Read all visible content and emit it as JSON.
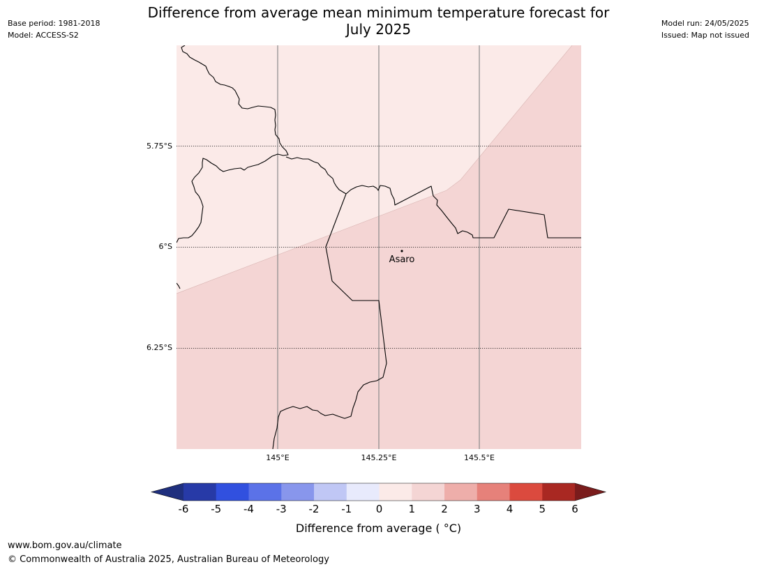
{
  "title": {
    "line1": "Difference from average mean minimum temperature forecast for",
    "line2": "July 2025"
  },
  "meta_left": {
    "base_period": "Base period: 1981-2018",
    "model": "Model: ACCESS-S2"
  },
  "meta_right": {
    "model_run": "Model run: 24/05/2025",
    "issued": "Issued: Map not issued"
  },
  "map": {
    "lat_labels": [
      "5.75°S",
      "6°S",
      "6.25°S"
    ],
    "lon_labels": [
      "145°E",
      "145.25°E",
      "145.5°E"
    ],
    "place": {
      "name": "Asaro"
    },
    "regions": [
      {
        "category": "0 to 1",
        "color": "#fbeae8"
      },
      {
        "category": "1 to 2",
        "color": "#f4d5d4"
      }
    ]
  },
  "colorbar": {
    "ticks": [
      "-6",
      "-5",
      "-4",
      "-3",
      "-2",
      "-1",
      "0",
      "1",
      "2",
      "3",
      "4",
      "5",
      "6"
    ],
    "colors": [
      "#273aa7",
      "#3150df",
      "#5b72e8",
      "#8896ec",
      "#c0c7f5",
      "#e8eafc",
      "#fbeae8",
      "#f4d5d4",
      "#eeaeaa",
      "#e6817a",
      "#db4a3e",
      "#a92822"
    ],
    "under_color": "#1f2f7e",
    "over_color": "#7a1c1c",
    "label": "Difference from average ( °C)"
  },
  "footer": {
    "url": "www.bom.gov.au/climate",
    "copyright": "© Commonwealth of Australia 2025, Australian Bureau of Meteorology"
  }
}
